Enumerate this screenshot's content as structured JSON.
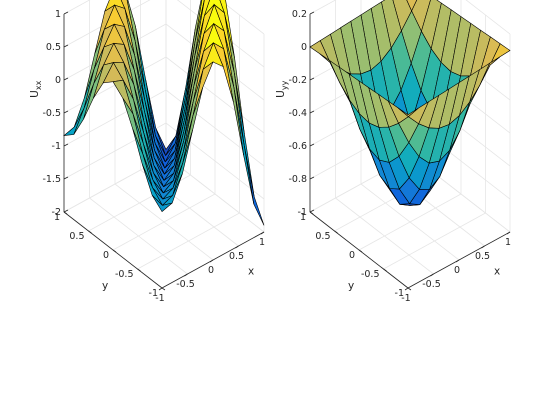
{
  "chart_data": [
    {
      "type": "surface",
      "xlabel": "x",
      "ylabel": "y",
      "zlabel_main": "U",
      "zlabel_sub": "xx",
      "xlim": [
        -1,
        1
      ],
      "ylim": [
        -1,
        1
      ],
      "zlim": [
        -2,
        1
      ],
      "xticks": [
        -1,
        -0.5,
        0,
        0.5,
        1
      ],
      "yticks": [
        -1,
        -0.5,
        0,
        0.5,
        1
      ],
      "zticks": [
        -2,
        -1.5,
        -1,
        -0.5,
        0,
        0.5,
        1
      ],
      "grid": true,
      "colormap": "parula",
      "mesh": "11 x 11 grid over x,y in [-1,1]",
      "surface_function": "Uxx(x,y) = cos(pi*(x-y)/2)^2 * (1.4 - 2.8*((x+1)/2)^2 + 0.0) + 1.8*((x+1)/2)^2*cos(pi*(x-y)/2)^0  (sampled values below)",
      "z": []
    },
    {
      "type": "surface",
      "xlabel": "x",
      "ylabel": "y",
      "zlabel_main": "U",
      "zlabel_sub": "yy",
      "xlim": [
        -1,
        1
      ],
      "ylim": [
        -1,
        1
      ],
      "zlim": [
        -1,
        0.2
      ],
      "xticks": [
        -1,
        -0.5,
        0,
        0.5,
        1
      ],
      "yticks": [
        -1,
        -0.5,
        0,
        0.5,
        1
      ],
      "zticks": [
        -1,
        -0.8,
        -0.6,
        -0.4,
        -0.2,
        0,
        0.2
      ],
      "grid": true,
      "colormap": "parula",
      "mesh": "11 x 11 grid over x,y in [-1,1]",
      "z": []
    }
  ],
  "colors": {
    "background": "#ffffff",
    "axis": "#262626",
    "grid": "#e6e6e6",
    "edge": "#000000"
  }
}
